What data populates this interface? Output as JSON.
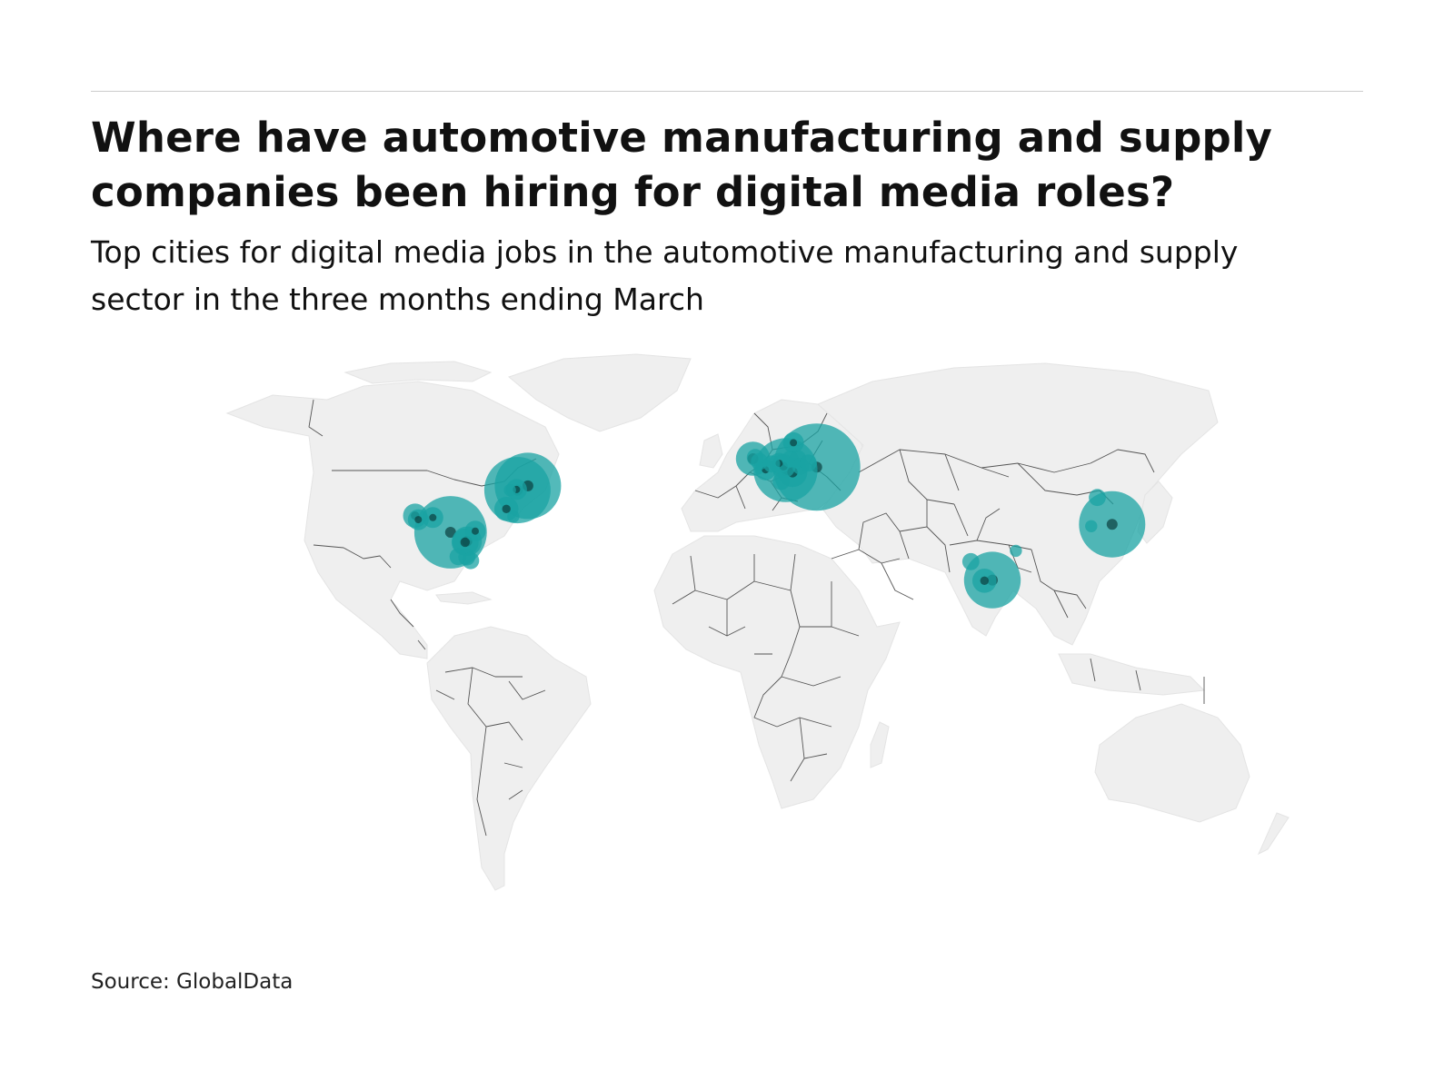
{
  "header": {
    "title_line1": "Where have automotive manufacturing and supply",
    "title_line2": "companies been hiring for digital media roles?",
    "subtitle_line1": "Top cities for digital media jobs in the automotive manufacturing and supply",
    "subtitle_line2": "sector in the three months ending March"
  },
  "footer": {
    "source": "Source: GlobalData"
  },
  "colors": {
    "bubble": "#1aa3a3",
    "land": "#efefef",
    "border": "#555555"
  },
  "map_data": {
    "type": "bubble-map",
    "projection": "equirectangular",
    "cities": [
      {
        "lon": -118.2,
        "lat": 34.0,
        "size": 4
      },
      {
        "lon": -117.1,
        "lat": 32.7,
        "size": 3
      },
      {
        "lon": -112.1,
        "lat": 33.4,
        "size": 3
      },
      {
        "lon": -106.0,
        "lat": 28.6,
        "size": 36
      },
      {
        "lon": -100.3,
        "lat": 25.7,
        "size": 6
      },
      {
        "lon": -101.0,
        "lat": 25.4,
        "size": 5
      },
      {
        "lon": -103.4,
        "lat": 20.7,
        "size": 2
      },
      {
        "lon": -100.4,
        "lat": 20.6,
        "size": 2
      },
      {
        "lon": -99.1,
        "lat": 19.4,
        "size": 2
      },
      {
        "lon": -97.5,
        "lat": 29.0,
        "size": 3
      },
      {
        "lon": -86.8,
        "lat": 36.2,
        "size": 4
      },
      {
        "lon": -83.0,
        "lat": 42.3,
        "size": 30
      },
      {
        "lon": -83.3,
        "lat": 42.5,
        "size": 3
      },
      {
        "lon": -85.6,
        "lat": 42.3,
        "size": 1
      },
      {
        "lon": -79.4,
        "lat": 43.7,
        "size": 30
      },
      {
        "lon": -84.4,
        "lat": 33.7,
        "size": 1
      },
      {
        "lon": -2.0,
        "lat": 52.5,
        "size": 8
      },
      {
        "lon": -1.2,
        "lat": 52.9,
        "size": 2
      },
      {
        "lon": 0.2,
        "lat": 51.6,
        "size": 2
      },
      {
        "lon": 2.3,
        "lat": 48.9,
        "size": 3
      },
      {
        "lon": 4.4,
        "lat": 50.8,
        "size": 2
      },
      {
        "lon": 7.0,
        "lat": 51.0,
        "size": 3
      },
      {
        "lon": 8.5,
        "lat": 50.1,
        "size": 4
      },
      {
        "lon": 9.2,
        "lat": 48.8,
        "size": 28
      },
      {
        "lon": 11.6,
        "lat": 48.1,
        "size": 6
      },
      {
        "lon": 10.8,
        "lat": 52.4,
        "size": 2
      },
      {
        "lon": 11.9,
        "lat": 57.7,
        "size": 3
      },
      {
        "lon": 13.4,
        "lat": 52.5,
        "size": 2
      },
      {
        "lon": 14.4,
        "lat": 50.1,
        "size": 2
      },
      {
        "lon": 17.0,
        "lat": 51.1,
        "size": 2
      },
      {
        "lon": 19.9,
        "lat": 49.8,
        "size": 52
      },
      {
        "lon": 7.7,
        "lat": 45.1,
        "size": 2
      },
      {
        "lon": 72.9,
        "lat": 19.1,
        "size": 2
      },
      {
        "lon": 77.6,
        "lat": 12.9,
        "size": 4
      },
      {
        "lon": 80.3,
        "lat": 13.1,
        "size": 22
      },
      {
        "lon": 88.4,
        "lat": 22.6,
        "size": 1
      },
      {
        "lon": 116.4,
        "lat": 39.9,
        "size": 2
      },
      {
        "lon": 114.3,
        "lat": 30.6,
        "size": 1
      },
      {
        "lon": 121.5,
        "lat": 31.2,
        "size": 30
      }
    ]
  }
}
